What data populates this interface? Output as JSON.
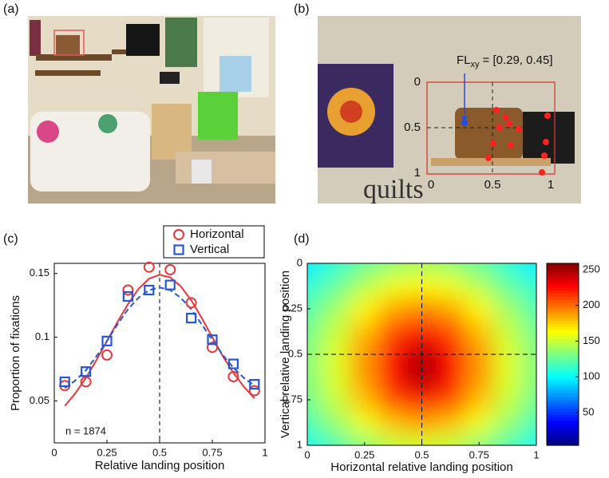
{
  "panel_a": {
    "label": "(a)"
  },
  "panel_b": {
    "label": "(b)",
    "annotation_main": "FL",
    "annotation_sub": "xy",
    "annotation_value": "= [0.29, 0.45]",
    "left_ticks": [
      "0",
      "0.5",
      "1"
    ],
    "bottom_ticks": [
      "0",
      "0.5",
      "1"
    ]
  },
  "chart_data": [
    {
      "type": "scatter_fit",
      "label": "(c)",
      "xlabel": "Relative landing position",
      "ylabel": "Proportion of fixations",
      "annotation": "n = 1874",
      "xlim": [
        0,
        1
      ],
      "xticks": [
        0,
        0.25,
        0.5,
        0.75,
        1
      ],
      "ylim": [
        0.017,
        0.158
      ],
      "yticks": [
        0.05,
        0.1,
        0.15
      ],
      "x": [
        0.05,
        0.15,
        0.25,
        0.35,
        0.45,
        0.55,
        0.65,
        0.75,
        0.85,
        0.95
      ],
      "series": [
        {
          "name": "Horizontal",
          "color": "#e8363a",
          "marker": "circle",
          "values": [
            0.062,
            0.065,
            0.086,
            0.137,
            0.155,
            0.153,
            0.127,
            0.092,
            0.069,
            0.058
          ]
        },
        {
          "name": "Vertical",
          "color": "#2458d8",
          "marker": "square",
          "values": [
            0.065,
            0.073,
            0.097,
            0.132,
            0.137,
            0.141,
            0.115,
            0.098,
            0.079,
            0.063
          ]
        }
      ],
      "fit_x": [
        0.05,
        0.1,
        0.15,
        0.2,
        0.25,
        0.3,
        0.35,
        0.4,
        0.45,
        0.5,
        0.55,
        0.6,
        0.65,
        0.7,
        0.75,
        0.8,
        0.85,
        0.9,
        0.95
      ],
      "fits": [
        {
          "color": "#e8363a",
          "dashed": false,
          "values": [
            0.046,
            0.056,
            0.068,
            0.082,
            0.097,
            0.112,
            0.126,
            0.138,
            0.146,
            0.149,
            0.147,
            0.14,
            0.129,
            0.115,
            0.1,
            0.085,
            0.072,
            0.061,
            0.052
          ]
        },
        {
          "color": "#2458d8",
          "dashed": true,
          "values": [
            0.06,
            0.066,
            0.074,
            0.085,
            0.097,
            0.11,
            0.122,
            0.131,
            0.137,
            0.139,
            0.137,
            0.131,
            0.122,
            0.11,
            0.098,
            0.086,
            0.076,
            0.068,
            0.062
          ]
        }
      ],
      "vline": 0.5
    },
    {
      "type": "heatmap",
      "label": "(d)",
      "xlabel": "Horizontal relative landing position",
      "ylabel": "Vertical relative landing position",
      "xlim": [
        0,
        1
      ],
      "xticks": [
        0,
        0.25,
        0.5,
        0.75,
        1
      ],
      "ylim": [
        1,
        0
      ],
      "yticks": [
        0,
        0.25,
        0.5,
        0.75,
        1
      ],
      "grid_x": [
        0,
        0.125,
        0.25,
        0.375,
        0.5,
        0.625,
        0.75,
        0.875,
        1
      ],
      "grid_y": [
        0,
        0.125,
        0.25,
        0.375,
        0.5,
        0.625,
        0.75,
        0.875,
        1
      ],
      "values": [
        [
          95,
          110,
          125,
          135,
          140,
          135,
          125,
          110,
          95
        ],
        [
          110,
          125,
          145,
          160,
          165,
          160,
          145,
          125,
          110
        ],
        [
          120,
          140,
          165,
          185,
          195,
          185,
          165,
          140,
          120
        ],
        [
          128,
          150,
          180,
          210,
          225,
          210,
          180,
          150,
          128
        ],
        [
          132,
          155,
          190,
          225,
          245,
          225,
          190,
          155,
          132
        ],
        [
          132,
          155,
          190,
          228,
          250,
          228,
          190,
          155,
          132
        ],
        [
          128,
          150,
          180,
          210,
          225,
          210,
          180,
          150,
          128
        ],
        [
          118,
          138,
          160,
          180,
          188,
          180,
          160,
          138,
          118
        ],
        [
          105,
          120,
          135,
          148,
          152,
          148,
          135,
          120,
          105
        ]
      ],
      "colormap": "jet",
      "clim": [
        4,
        259
      ],
      "cticks": [
        50,
        100,
        150,
        200,
        250
      ],
      "crosshair": [
        0.5,
        0.5
      ]
    }
  ]
}
